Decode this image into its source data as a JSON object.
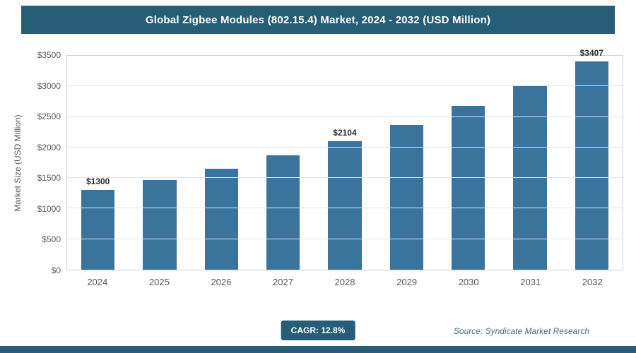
{
  "header": {
    "title": "Global Zigbee Modules (802.15.4) Market, 2024 - 2032 (USD Million)"
  },
  "chart_data": {
    "type": "bar",
    "title": "Global Zigbee Modules (802.15.4) Market, 2024 - 2032 (USD Million)",
    "categories": [
      "2024",
      "2025",
      "2026",
      "2027",
      "2028",
      "2029",
      "2030",
      "2031",
      "2032"
    ],
    "values": [
      1300,
      1466,
      1654,
      1866,
      2104,
      2373,
      2677,
      3020,
      3407
    ],
    "data_labels": [
      "$1300",
      "",
      "",
      "",
      "$2104",
      "",
      "",
      "",
      "$3407"
    ],
    "xlabel": "",
    "ylabel": "Market Size (USD Million)",
    "ylim": [
      0,
      3500
    ],
    "ytick_step": 500,
    "ytick_prefix": "$",
    "grid": true,
    "legend": "none",
    "bar_color": "#3a739c"
  },
  "footer": {
    "cagr_label": "CAGR: 12.8%",
    "source": "Source: Syndicate Market Research"
  },
  "colors": {
    "accent": "#275d77",
    "bar": "#3a739c",
    "grid": "#e4e4e4"
  }
}
